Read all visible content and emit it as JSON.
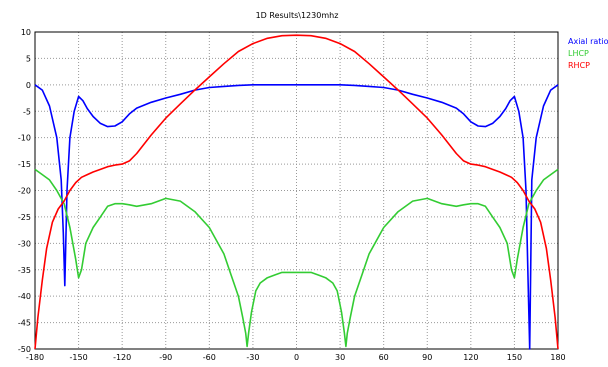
{
  "chart_data": {
    "type": "line",
    "title": "1D Results\\1230mhz",
    "xlabel": "",
    "ylabel": "",
    "xlim": [
      -180,
      180
    ],
    "ylim": [
      -50,
      10
    ],
    "xticks": [
      -180,
      -150,
      -120,
      -90,
      -60,
      -30,
      0,
      30,
      60,
      90,
      120,
      150,
      180
    ],
    "yticks": [
      10,
      5,
      0,
      -5,
      -10,
      -15,
      -20,
      -25,
      -30,
      -35,
      -40,
      -45,
      -50
    ],
    "grid": true,
    "legend_position": "top-right",
    "series": [
      {
        "name": "Axial ratio",
        "color": "#0000ff",
        "x": [
          -180,
          -175,
          -170,
          -165,
          -162,
          -160.5,
          -159.5,
          -158,
          -156,
          -153,
          -150,
          -147,
          -144,
          -140,
          -135,
          -130,
          -125,
          -120,
          -115,
          -110,
          -100,
          -90,
          -80,
          -70,
          -60,
          -50,
          -40,
          -30,
          -20,
          -10,
          0,
          10,
          20,
          30,
          40,
          50,
          60,
          70,
          80,
          90,
          100,
          110,
          115,
          120,
          125,
          130,
          135,
          140,
          144,
          147,
          150,
          153,
          156,
          158,
          159.5,
          160.5,
          162,
          165,
          170,
          175,
          180
        ],
        "y": [
          0,
          -1,
          -4,
          -10,
          -18,
          -28,
          -38,
          -20,
          -10,
          -5,
          -2.2,
          -3,
          -4.5,
          -6,
          -7.3,
          -7.9,
          -7.8,
          -7,
          -5.5,
          -4.4,
          -3.3,
          -2.5,
          -1.8,
          -1,
          -0.5,
          -0.3,
          -0.1,
          0,
          0,
          0,
          0,
          0,
          0,
          0,
          -0.1,
          -0.3,
          -0.5,
          -1,
          -1.8,
          -2.5,
          -3.3,
          -4.4,
          -5.5,
          -7,
          -7.8,
          -7.9,
          -7.3,
          -6,
          -4.5,
          -3,
          -2.2,
          -5,
          -10,
          -20,
          -38,
          -50,
          -18,
          -10,
          -4,
          -1,
          0
        ]
      },
      {
        "name": "LHCP",
        "color": "#33cc33",
        "x": [
          -180,
          -175,
          -170,
          -165,
          -160,
          -156,
          -152,
          -150,
          -148,
          -145,
          -140,
          -135,
          -130,
          -125,
          -120,
          -115,
          -110,
          -100,
          -90,
          -80,
          -70,
          -60,
          -50,
          -45,
          -40,
          -37,
          -35,
          -34,
          -33,
          -31,
          -28,
          -25,
          -20,
          -15,
          -10,
          0,
          10,
          15,
          20,
          25,
          28,
          31,
          33,
          34,
          35,
          37,
          40,
          45,
          50,
          60,
          70,
          80,
          90,
          100,
          110,
          115,
          120,
          125,
          130,
          135,
          140,
          145,
          148,
          150,
          152,
          156,
          160,
          165,
          170,
          175,
          180
        ],
        "y": [
          -16,
          -17,
          -18,
          -20,
          -22.5,
          -27,
          -33,
          -36.5,
          -35,
          -30,
          -27,
          -25,
          -23,
          -22.5,
          -22.5,
          -22.7,
          -23,
          -22.5,
          -21.5,
          -22,
          -24,
          -27,
          -32,
          -36,
          -40,
          -44,
          -47,
          -49.5,
          -47,
          -43,
          -39,
          -37.5,
          -36.5,
          -36,
          -35.5,
          -35.5,
          -35.5,
          -36,
          -36.5,
          -37.5,
          -39,
          -43,
          -47,
          -49.5,
          -47,
          -44,
          -40,
          -36,
          -32,
          -27,
          -24,
          -22,
          -21.5,
          -22.5,
          -23,
          -22.7,
          -22.5,
          -22.5,
          -23,
          -25,
          -27,
          -30,
          -35,
          -36.5,
          -33,
          -27,
          -22.5,
          -20,
          -18,
          -17,
          -16
        ]
      },
      {
        "name": "RHCP",
        "color": "#ff0000",
        "x": [
          -180,
          -178,
          -175,
          -172,
          -168,
          -164,
          -160,
          -156,
          -152,
          -148,
          -144,
          -140,
          -135,
          -130,
          -125,
          -120,
          -115,
          -110,
          -100,
          -90,
          -80,
          -70,
          -60,
          -50,
          -40,
          -30,
          -20,
          -10,
          0,
          10,
          20,
          30,
          40,
          50,
          60,
          70,
          80,
          90,
          100,
          110,
          115,
          120,
          125,
          130,
          135,
          140,
          144,
          148,
          152,
          156,
          160,
          164,
          168,
          172,
          175,
          178,
          180
        ],
        "y": [
          -50,
          -44,
          -37,
          -31,
          -26,
          -23.5,
          -22,
          -20,
          -18.5,
          -17.5,
          -17,
          -16.5,
          -16,
          -15.5,
          -15.2,
          -15,
          -14.4,
          -13,
          -9.5,
          -6.3,
          -3.6,
          -1,
          1.5,
          4,
          6.3,
          7.8,
          8.8,
          9.3,
          9.4,
          9.3,
          8.8,
          7.8,
          6.3,
          4,
          1.5,
          -1,
          -3.6,
          -6.3,
          -9.5,
          -13,
          -14.4,
          -15,
          -15.2,
          -15.5,
          -16,
          -16.5,
          -17,
          -17.5,
          -18.5,
          -20,
          -22,
          -23.5,
          -26,
          -31,
          -37,
          -44,
          -50
        ]
      }
    ]
  }
}
